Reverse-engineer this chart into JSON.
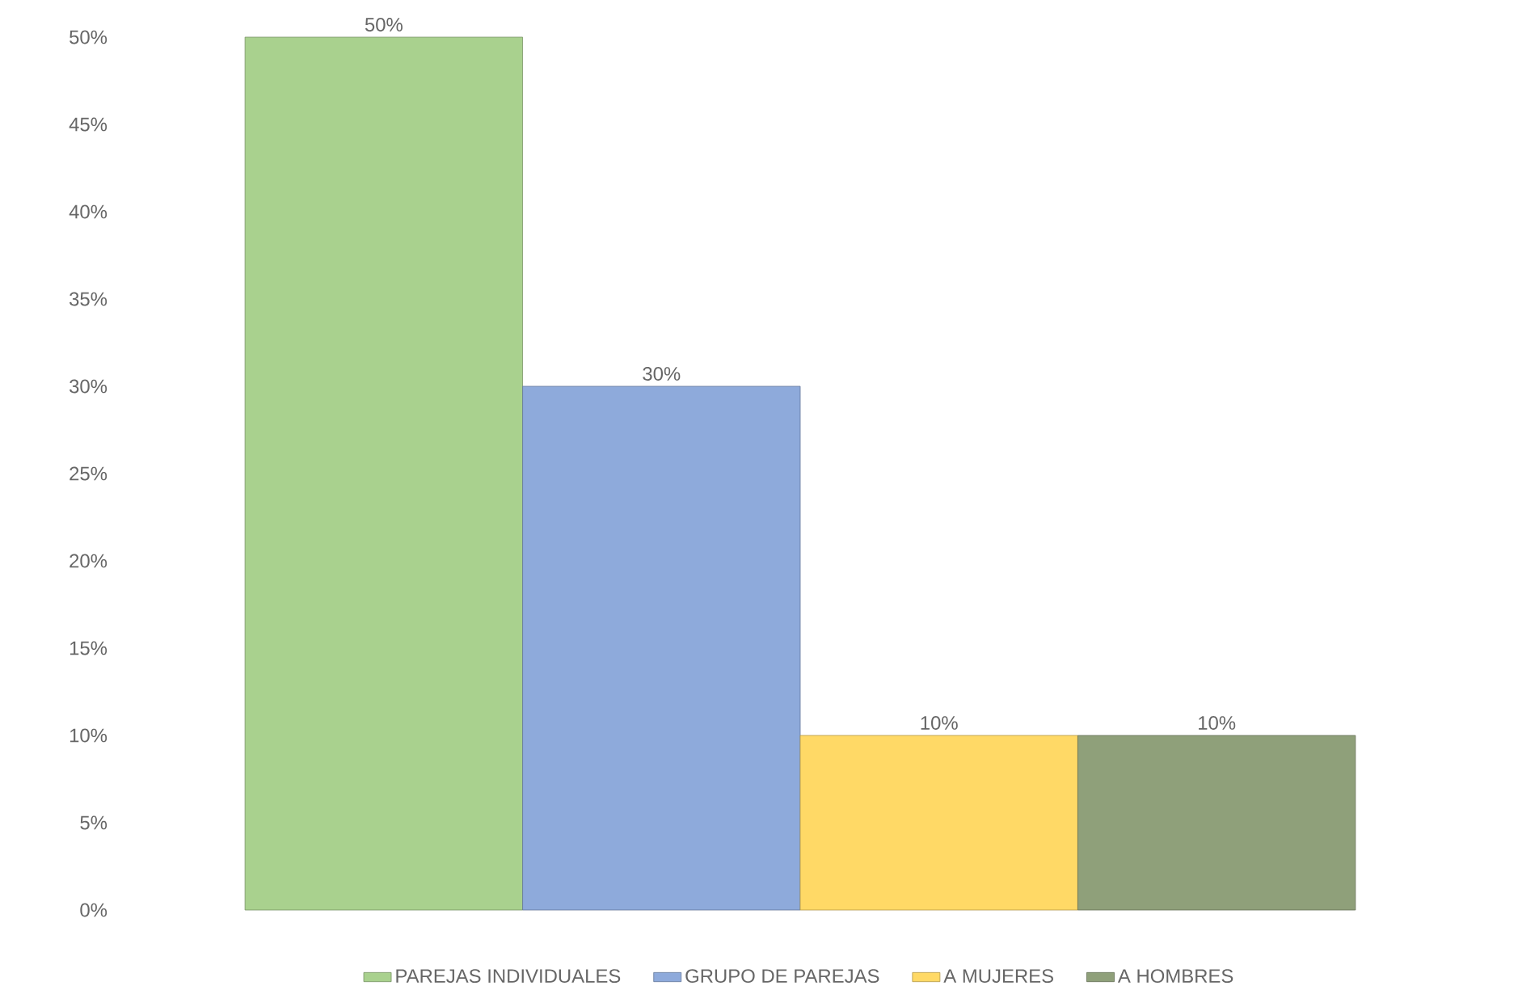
{
  "chart_data": {
    "type": "bar",
    "categories": [
      null
    ],
    "series": [
      {
        "name": "PAREJAS INDIVIDUALES",
        "color": "#a9d18e",
        "values": [
          50
        ],
        "value_labels": [
          "50%"
        ]
      },
      {
        "name": "GRUPO DE PAREJAS",
        "color": "#8eaadb",
        "values": [
          30
        ],
        "value_labels": [
          "30%"
        ]
      },
      {
        "name": "A MUJERES",
        "color": "#ffd966",
        "values": [
          10
        ],
        "value_labels": [
          "10%"
        ]
      },
      {
        "name": "A HOMBRES",
        "color": "#8fa07a",
        "values": [
          10
        ],
        "value_labels": [
          "10%"
        ]
      }
    ],
    "ylim": [
      0,
      50
    ],
    "yticks": [
      {
        "value": 0,
        "label": "0%"
      },
      {
        "value": 5,
        "label": "5%"
      },
      {
        "value": 10,
        "label": "10%"
      },
      {
        "value": 15,
        "label": "15%"
      },
      {
        "value": 20,
        "label": "20%"
      },
      {
        "value": 25,
        "label": "25%"
      },
      {
        "value": 30,
        "label": "30%"
      },
      {
        "value": 35,
        "label": "35%"
      },
      {
        "value": 40,
        "label": "40%"
      },
      {
        "value": 45,
        "label": "45%"
      },
      {
        "value": 50,
        "label": "50%"
      }
    ],
    "legend": "bottom",
    "grid": false
  }
}
